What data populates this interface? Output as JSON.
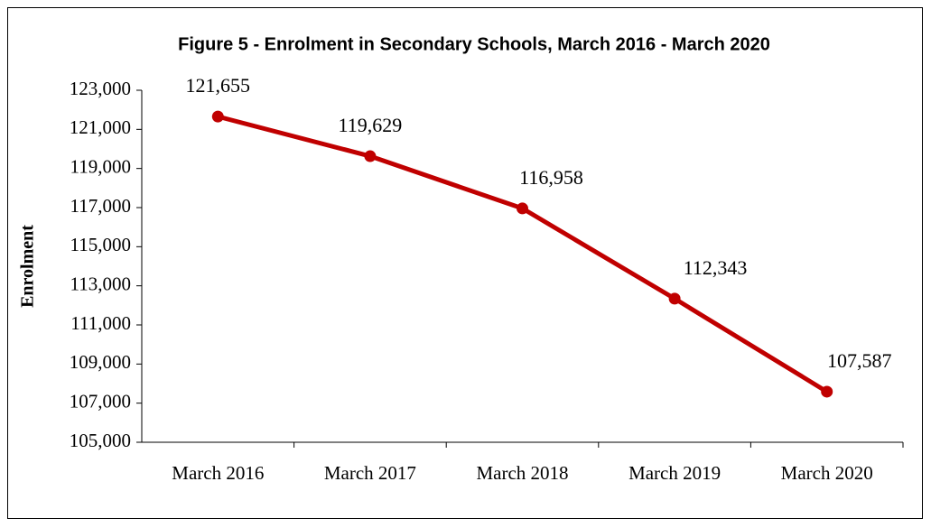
{
  "chart_data": {
    "type": "line",
    "title": "Figure 5 - Enrolment in Secondary  Schools, March 2016 - March 2020",
    "y_label": "Enrolment",
    "categories": [
      "March 2016",
      "March 2017",
      "March 2018",
      "March 2019",
      "March 2020"
    ],
    "series": [
      {
        "name": "Enrolment",
        "color": "#c00000",
        "values": [
          121655,
          119629,
          116958,
          112343,
          107587
        ],
        "value_labels": [
          "121,655",
          "119,629",
          "116,958",
          "112,343",
          "107,587"
        ]
      }
    ],
    "ylim": [
      105000,
      123000
    ],
    "yticks": [
      {
        "value": 105000,
        "label": "105,000"
      },
      {
        "value": 107000,
        "label": "107,000"
      },
      {
        "value": 109000,
        "label": "109,000"
      },
      {
        "value": 111000,
        "label": "111,000"
      },
      {
        "value": 113000,
        "label": "113,000"
      },
      {
        "value": 115000,
        "label": "115,000"
      },
      {
        "value": 117000,
        "label": "117,000"
      },
      {
        "value": 119000,
        "label": "119,000"
      },
      {
        "value": 121000,
        "label": "121,000"
      },
      {
        "value": 123000,
        "label": "123,000"
      }
    ],
    "grid": false
  }
}
